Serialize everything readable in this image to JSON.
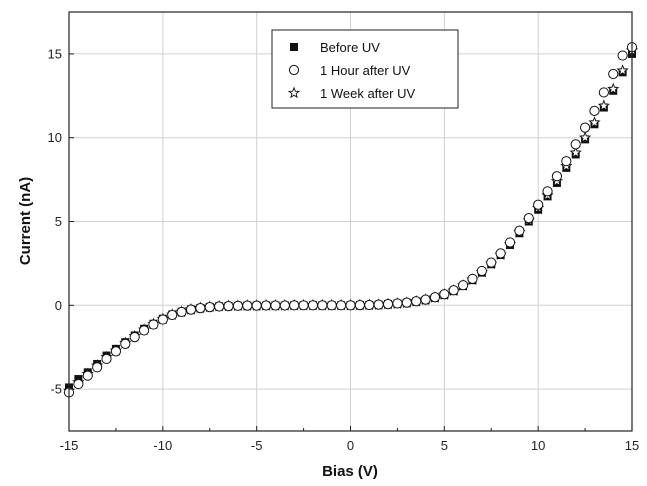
{
  "chart_data": {
    "type": "scatter",
    "title": "",
    "xlabel": "Bias (V)",
    "ylabel": "Current (nA)",
    "xlim": [
      -15,
      15
    ],
    "ylim": [
      -7.5,
      17.5
    ],
    "xticks": [
      "-15",
      "-10",
      "-5",
      "0",
      "5",
      "10",
      "15"
    ],
    "yticks": [
      "-5",
      "0",
      "5",
      "10",
      "15"
    ],
    "grid": true,
    "legend_position": "top-center",
    "series": [
      {
        "name": "Before UV",
        "marker": "filled-square",
        "color": "#111111",
        "x": [
          -15,
          -14.5,
          -14,
          -13.5,
          -13,
          -12.5,
          -12,
          -11.5,
          -11,
          -10.5,
          -10,
          -9.5,
          -9,
          -8.5,
          -8,
          -7.5,
          -7,
          -6.5,
          -6,
          -5.5,
          -5,
          -4.5,
          -4,
          -3.5,
          -3,
          -2.5,
          -2,
          -1.5,
          -1,
          -0.5,
          0,
          0.5,
          1,
          1.5,
          2,
          2.5,
          3,
          3.5,
          4,
          4.5,
          5,
          5.5,
          6,
          6.5,
          7,
          7.5,
          8,
          8.5,
          9,
          9.5,
          10,
          10.5,
          11,
          11.5,
          12,
          12.5,
          13,
          13.5,
          14,
          14.5,
          15
        ],
        "y": [
          -4.9,
          -4.4,
          -4.0,
          -3.5,
          -3.0,
          -2.6,
          -2.2,
          -1.8,
          -1.4,
          -1.1,
          -0.8,
          -0.55,
          -0.38,
          -0.25,
          -0.16,
          -0.1,
          -0.06,
          -0.04,
          -0.03,
          -0.02,
          -0.02,
          -0.01,
          -0.01,
          -0.01,
          0.0,
          0.0,
          0.0,
          0.0,
          0.0,
          0.0,
          0.0,
          0.01,
          0.02,
          0.04,
          0.07,
          0.1,
          0.15,
          0.22,
          0.32,
          0.45,
          0.62,
          0.85,
          1.15,
          1.5,
          1.95,
          2.45,
          3.0,
          3.6,
          4.3,
          5.0,
          5.7,
          6.5,
          7.3,
          8.2,
          9.0,
          9.9,
          10.8,
          11.8,
          12.8,
          13.9,
          15.0
        ]
      },
      {
        "name": "1 Hour after UV",
        "marker": "open-circle",
        "color": "#111111",
        "x": [
          -15,
          -14.5,
          -14,
          -13.5,
          -13,
          -12.5,
          -12,
          -11.5,
          -11,
          -10.5,
          -10,
          -9.5,
          -9,
          -8.5,
          -8,
          -7.5,
          -7,
          -6.5,
          -6,
          -5.5,
          -5,
          -4.5,
          -4,
          -3.5,
          -3,
          -2.5,
          -2,
          -1.5,
          -1,
          -0.5,
          0,
          0.5,
          1,
          1.5,
          2,
          2.5,
          3,
          3.5,
          4,
          4.5,
          5,
          5.5,
          6,
          6.5,
          7,
          7.5,
          8,
          8.5,
          9,
          9.5,
          10,
          10.5,
          11,
          11.5,
          12,
          12.5,
          13,
          13.5,
          14,
          14.5,
          15
        ],
        "y": [
          -5.2,
          -4.7,
          -4.2,
          -3.7,
          -3.2,
          -2.75,
          -2.3,
          -1.9,
          -1.5,
          -1.15,
          -0.85,
          -0.58,
          -0.4,
          -0.26,
          -0.17,
          -0.11,
          -0.07,
          -0.05,
          -0.03,
          -0.02,
          -0.02,
          -0.01,
          -0.01,
          -0.01,
          0.0,
          0.0,
          0.0,
          0.0,
          0.0,
          0.0,
          0.0,
          0.01,
          0.02,
          0.04,
          0.07,
          0.11,
          0.16,
          0.24,
          0.34,
          0.48,
          0.66,
          0.9,
          1.2,
          1.58,
          2.05,
          2.55,
          3.1,
          3.75,
          4.45,
          5.2,
          6.0,
          6.8,
          7.7,
          8.6,
          9.6,
          10.6,
          11.6,
          12.7,
          13.8,
          14.9,
          15.4
        ]
      },
      {
        "name": "1 Week after UV",
        "marker": "open-star",
        "color": "#111111",
        "x": [
          -15,
          -14.5,
          -14,
          -13.5,
          -13,
          -12.5,
          -12,
          -11.5,
          -11,
          -10.5,
          -10,
          -9.5,
          -9,
          -8.5,
          -8,
          -7.5,
          -7,
          -6.5,
          -6,
          -5.5,
          -5,
          -4.5,
          -4,
          -3.5,
          -3,
          -2.5,
          -2,
          -1.5,
          -1,
          -0.5,
          0,
          0.5,
          1,
          1.5,
          2,
          2.5,
          3,
          3.5,
          4,
          4.5,
          5,
          5.5,
          6,
          6.5,
          7,
          7.5,
          8,
          8.5,
          9,
          9.5,
          10,
          10.5,
          11,
          11.5,
          12,
          12.5,
          13,
          13.5,
          14,
          14.5,
          15
        ],
        "y": [
          -5.1,
          -4.6,
          -4.1,
          -3.6,
          -3.1,
          -2.7,
          -2.25,
          -1.85,
          -1.45,
          -1.12,
          -0.82,
          -0.56,
          -0.39,
          -0.25,
          -0.16,
          -0.1,
          -0.06,
          -0.04,
          -0.03,
          -0.02,
          -0.02,
          -0.01,
          -0.01,
          -0.01,
          0.0,
          0.0,
          0.0,
          0.0,
          0.0,
          0.0,
          0.0,
          0.01,
          0.02,
          0.04,
          0.07,
          0.1,
          0.15,
          0.23,
          0.33,
          0.46,
          0.64,
          0.87,
          1.17,
          1.53,
          1.98,
          2.48,
          3.02,
          3.65,
          4.35,
          5.05,
          5.8,
          6.55,
          7.4,
          8.3,
          9.1,
          10.0,
          10.9,
          11.9,
          12.9,
          14.0,
          15.2
        ]
      }
    ]
  }
}
